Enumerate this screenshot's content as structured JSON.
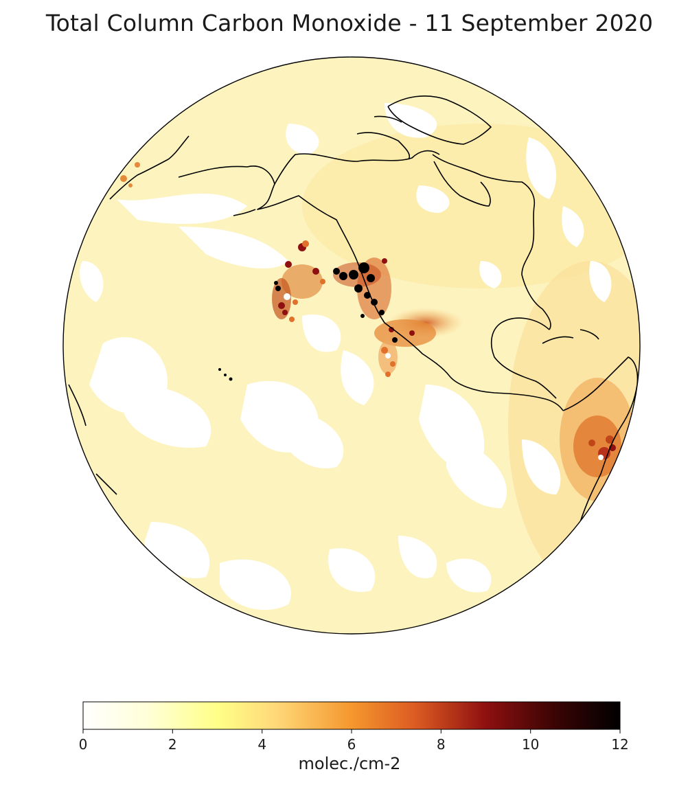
{
  "title": "Total Column Carbon Monoxide - 11 September 2020",
  "map": {
    "projection": "orthographic",
    "variable": "Total Column Carbon Monoxide",
    "date": "11 September 2020",
    "colormap": "afmhot_r",
    "regions": [
      "North America",
      "Pacific Ocean",
      "Central America",
      "South America",
      "Greenland",
      "Hawaii",
      "Gulf of Mexico",
      "Caribbean"
    ],
    "features": [
      {
        "name": "US West Coast wildfire smoke",
        "level": "high"
      },
      {
        "name": "Smoke plume over northeast Pacific",
        "level": "high"
      },
      {
        "name": "South America (Brazil) fire emissions",
        "level": "moderate-high"
      }
    ]
  },
  "colorbar": {
    "label": "molec./cm-2",
    "min": 0,
    "max": 12,
    "ticks": [
      "0",
      "2",
      "4",
      "6",
      "8",
      "10",
      "12"
    ],
    "colors": [
      "#ffffff",
      "#ffffaa",
      "#ffd06a",
      "#f08a2a",
      "#c0461a",
      "#6a0a0a",
      "#000000"
    ]
  },
  "chart_data": {
    "type": "heatmap",
    "title": "Total Column Carbon Monoxide - 11 September 2020",
    "colorbar_label": "molec./cm-2",
    "value_range": [
      0,
      12
    ],
    "colorbar_ticks": [
      0,
      2,
      4,
      6,
      8,
      10,
      12
    ]
  }
}
